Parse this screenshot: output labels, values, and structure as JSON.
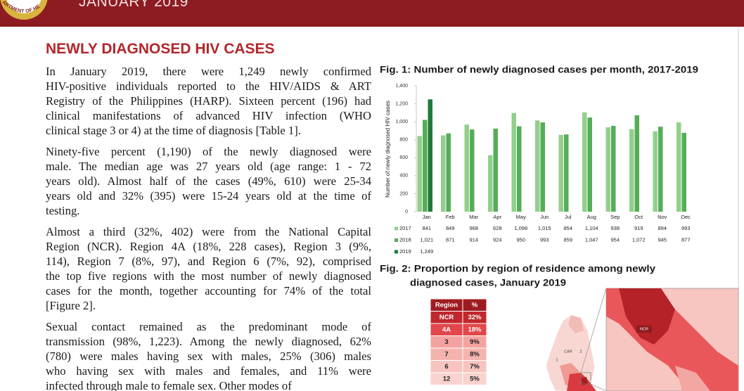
{
  "header": {
    "logo_text": "ARTMENT OF HE",
    "issue": "JANUARY 2019"
  },
  "section_title": "NEWLY DIAGNOSED HIV CASES",
  "paragraphs": [
    [
      "In January 2019, there were 1,249 newly confirmed",
      "HIV-positive individuals reported to the HIV/AIDS & ART",
      "Registry of the Philippines (HARP). Sixteen percent (196) had",
      "clinical manifestations of advanced HIV infection (WHO",
      "clinical stage 3 or 4) at the time of diagnosis [Table 1]."
    ],
    [
      "Ninety-five percent (1,190) of the newly diagnosed were",
      "male. The median age was 27 years old (age range: 1 - 72",
      "years old). Almost half of the cases (49%, 610) were 25-34",
      "years old and 32% (395) were 15-24 years old at the time of",
      "testing."
    ],
    [
      "Almost a third (32%, 402) were from the National Capital",
      "Region (NCR). Region 4A (18%, 228 cases), Region 3 (9%,",
      "114), Region 7 (8%, 97), and Region 6 (7%, 92), comprised",
      "the top five regions with the most number of newly diagnosed",
      "cases for the month, together accounting for 74% of the total",
      "[Figure 2]."
    ],
    [
      "Sexual contact remained as the predominant mode of",
      "transmission (98%, 1,223). Among the newly diagnosed, 62%",
      "(780) were males having sex with males, 25% (306) males",
      "who having sex with males and females, and 11% were",
      "infected through male to female sex. Other modes of"
    ]
  ],
  "chart_data": {
    "type": "bar",
    "title": "Fig. 1: Number of newly diagnosed cases per month, 2017-2019",
    "y_label": "Number of newly diagnosed HIV cases",
    "categories": [
      "Jan",
      "Feb",
      "Mar",
      "Apr",
      "May",
      "Jun",
      "Jul",
      "Aug",
      "Sep",
      "Oct",
      "Nov",
      "Dec"
    ],
    "series": [
      {
        "name": "2017",
        "color": "#93cf8c",
        "values": [
          841,
          849,
          968,
          628,
          1098,
          1015,
          854,
          1104,
          938,
          919,
          894,
          993
        ],
        "value_labels": [
          "841",
          "849",
          "968",
          "628",
          "1,098",
          "1,015",
          "854",
          "1,104",
          "938",
          "919",
          "894",
          "993"
        ]
      },
      {
        "name": "2018",
        "color": "#55ad58",
        "values": [
          1021,
          871,
          914,
          924,
          950,
          993,
          859,
          1047,
          954,
          1072,
          945,
          877
        ],
        "value_labels": [
          "1,021",
          "871",
          "914",
          "924",
          "950",
          "993",
          "859",
          "1,047",
          "954",
          "1,072",
          "945",
          "877"
        ]
      },
      {
        "name": "2019",
        "color": "#1f7a3a",
        "values": [
          1249,
          null,
          null,
          null,
          null,
          null,
          null,
          null,
          null,
          null,
          null,
          null
        ],
        "value_labels": [
          "1,249",
          null,
          null,
          null,
          null,
          null,
          null,
          null,
          null,
          null,
          null,
          null
        ]
      }
    ],
    "ylim": [
      0,
      1400
    ],
    "yticks": [
      0,
      200,
      400,
      600,
      800,
      {
        "value": 1000,
        "label": "1,000"
      },
      {
        "value": 1200,
        "label": "1,200"
      },
      {
        "value": 1400,
        "label": "1,400"
      }
    ],
    "grid": false
  },
  "figure2": {
    "title_lines": [
      "Fig. 2: Proportion by region of residence among newly",
      "diagnosed cases, January 2019"
    ],
    "table": {
      "columns": [
        "Region",
        "%"
      ],
      "rows": [
        {
          "region": "NCR",
          "percent": "32%",
          "color": "#c0282d"
        },
        {
          "region": "4A",
          "percent": "18%",
          "color": "#e2474b"
        },
        {
          "region": "3",
          "percent": "9%",
          "color": "#f3a39f"
        },
        {
          "region": "7",
          "percent": "8%",
          "color": "#f5b3ae"
        },
        {
          "region": "6",
          "percent": "7%",
          "color": "#f7c4bf"
        },
        {
          "region": "12",
          "percent": "5%",
          "color": "#f9d3cf"
        }
      ]
    },
    "map_labels": [
      "NCR",
      "CAR",
      "1",
      "2"
    ]
  }
}
